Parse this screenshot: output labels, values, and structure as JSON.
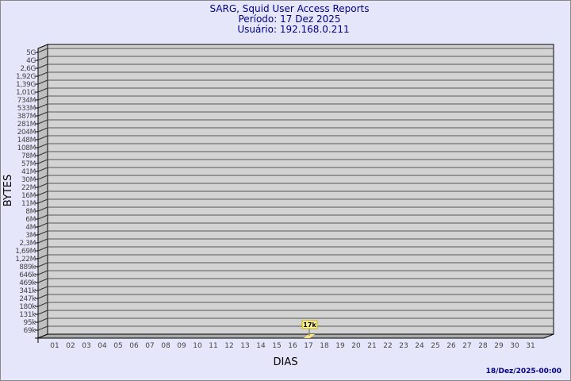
{
  "chart_data": {
    "type": "bar",
    "title": [
      "SARG, Squid User Access Reports",
      "Período: 17 Dez 2025",
      "Usuário: 192.168.0.211"
    ],
    "xlabel": "DIAS",
    "ylabel": "BYTES",
    "y_scale": "log",
    "y_ticks": [
      "5G",
      "4G",
      "2,6G",
      "1,92G",
      "1,39G",
      "1,01G",
      "734M",
      "533M",
      "387M",
      "281M",
      "204M",
      "148M",
      "108M",
      "78M",
      "57M",
      "41M",
      "30M",
      "22M",
      "16M",
      "11M",
      "8M",
      "6M",
      "4M",
      "3M",
      "2,3M",
      "1,69M",
      "1,22M",
      "889k",
      "646k",
      "469k",
      "341k",
      "247k",
      "180k",
      "131k",
      "95k",
      "69k"
    ],
    "categories": [
      "01",
      "02",
      "03",
      "04",
      "05",
      "06",
      "07",
      "08",
      "09",
      "10",
      "11",
      "12",
      "13",
      "14",
      "15",
      "16",
      "17",
      "18",
      "19",
      "20",
      "21",
      "22",
      "23",
      "24",
      "25",
      "26",
      "27",
      "28",
      "29",
      "30",
      "31"
    ],
    "bars": [
      {
        "day": "17",
        "value": 17000,
        "label": "17k"
      }
    ],
    "grid": true,
    "colors": {
      "title": "#00008b",
      "plot": "#d3d3d3",
      "bar": "#ffe680",
      "background": "#e6e6fa"
    }
  },
  "footer": {
    "timestamp": "18/Dez/2025-00:00"
  }
}
